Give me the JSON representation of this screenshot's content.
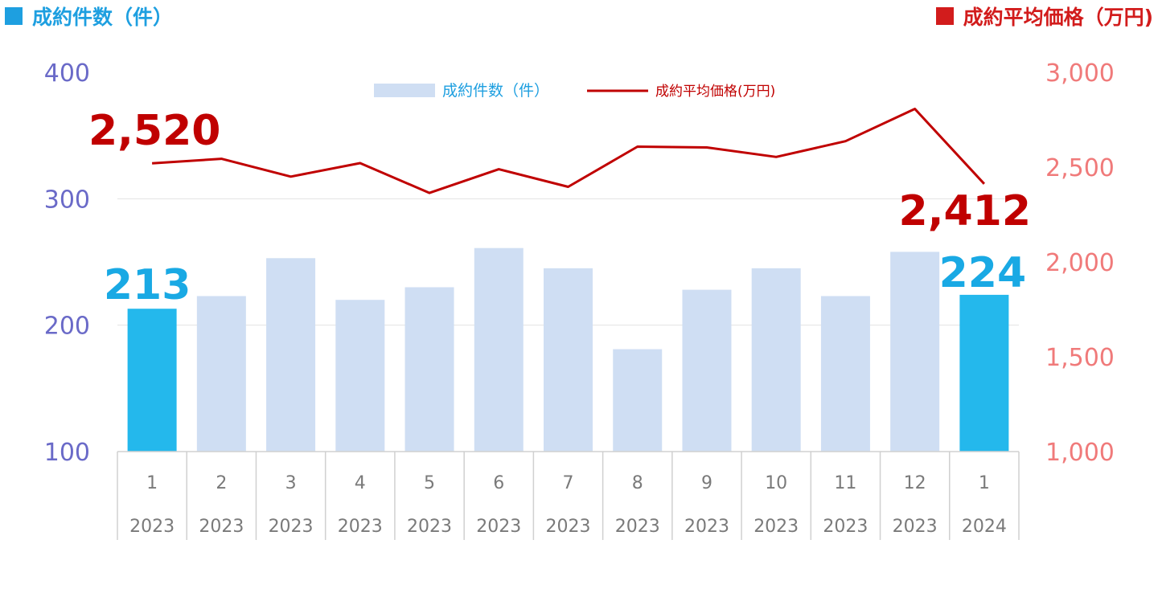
{
  "header": {
    "left_label": "成約件数（件）",
    "right_label": "成約平均価格（万円)"
  },
  "colors": {
    "bar_default": "#cfdef3",
    "bar_highlight": "#24b8ec",
    "line": "#c00000",
    "left_axis_text": "#6a6ac8",
    "right_axis_text": "#f07a7a",
    "left_header": "#1e9fe0",
    "right_header": "#d21c1c",
    "count_label": "#19a9e4",
    "price_label": "#c00000",
    "legend_bar_text": "#1e9fe0",
    "legend_line_text": "#c00000"
  },
  "chart_data": {
    "type": "bar",
    "categories": [
      {
        "month": "1",
        "year": "2023"
      },
      {
        "month": "2",
        "year": "2023"
      },
      {
        "month": "3",
        "year": "2023"
      },
      {
        "month": "4",
        "year": "2023"
      },
      {
        "month": "5",
        "year": "2023"
      },
      {
        "month": "6",
        "year": "2023"
      },
      {
        "month": "7",
        "year": "2023"
      },
      {
        "month": "8",
        "year": "2023"
      },
      {
        "month": "9",
        "year": "2023"
      },
      {
        "month": "10",
        "year": "2023"
      },
      {
        "month": "11",
        "year": "2023"
      },
      {
        "month": "12",
        "year": "2023"
      },
      {
        "month": "1",
        "year": "2024"
      }
    ],
    "series": [
      {
        "name": "成約件数（件）",
        "type": "bar",
        "axis": "left",
        "values": [
          213,
          223,
          253,
          220,
          230,
          261,
          245,
          181,
          228,
          245,
          223,
          258,
          224
        ],
        "highlight_indices": [
          0,
          12
        ]
      },
      {
        "name": "成約平均価格(万円)",
        "type": "line",
        "axis": "right",
        "values": [
          2520,
          2544,
          2450,
          2521,
          2364,
          2489,
          2396,
          2608,
          2604,
          2554,
          2637,
          2807,
          2412
        ]
      }
    ],
    "left_axis": {
      "ylim": [
        100,
        400
      ],
      "ticks": [
        "100",
        "200",
        "300",
        "400"
      ]
    },
    "right_axis": {
      "ylim": [
        1000,
        3000
      ],
      "ticks": [
        "1,000",
        "1,500",
        "2,000",
        "2,500",
        "3,000"
      ]
    },
    "gridlines": true,
    "legend_position": "top-center",
    "annotations": {
      "count_first": "213",
      "count_last": "224",
      "price_first": "2,520",
      "price_last": "2,412"
    }
  }
}
